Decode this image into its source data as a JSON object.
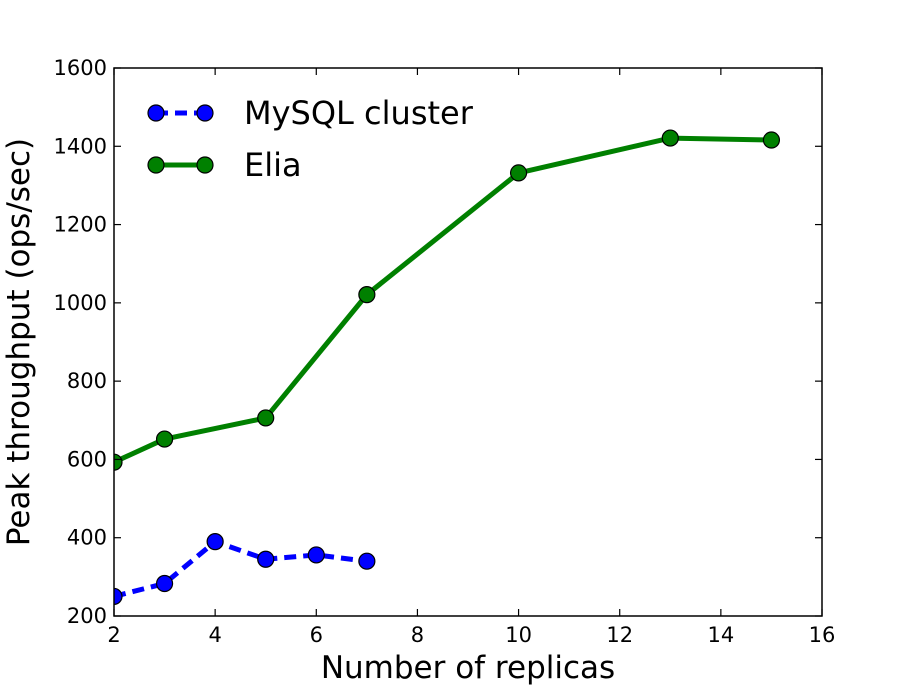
{
  "chart_data": {
    "type": "line",
    "xlabel": "Number of replicas",
    "ylabel": "Peak throughput (ops/sec)",
    "xlim": [
      2,
      16
    ],
    "ylim": [
      200,
      1600
    ],
    "xticks": [
      2,
      4,
      6,
      8,
      10,
      12,
      14,
      16
    ],
    "yticks": [
      200,
      400,
      600,
      800,
      1000,
      1200,
      1400,
      1600
    ],
    "grid": false,
    "legend_position": "top-left",
    "series": [
      {
        "name": "MySQL cluster",
        "color": "#0000ff",
        "line_style": "dashed",
        "marker": "circle",
        "x": [
          2,
          3,
          4,
          5,
          6,
          7
        ],
        "y": [
          250,
          283,
          390,
          345,
          356,
          340
        ]
      },
      {
        "name": "Elia",
        "color": "#008000",
        "line_style": "solid",
        "marker": "circle",
        "x": [
          2,
          3,
          5,
          7,
          10,
          13,
          15
        ],
        "y": [
          593,
          652,
          706,
          1021,
          1332,
          1421,
          1416
        ]
      }
    ]
  }
}
